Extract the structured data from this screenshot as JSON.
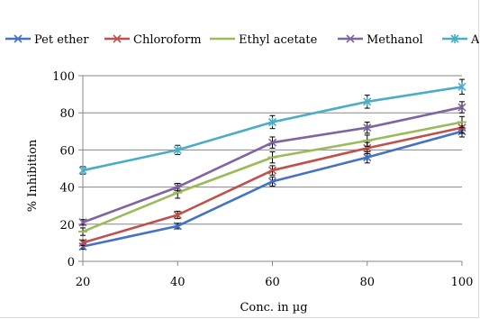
{
  "chart_data": {
    "type": "line",
    "x": [
      20,
      40,
      60,
      80,
      100
    ],
    "xlabel": "Conc. in µg",
    "ylabel": "% Inhibition",
    "xlim": [
      20,
      100
    ],
    "ylim": [
      0,
      100
    ],
    "xticks": [
      "20",
      "40",
      "60",
      "80",
      "100"
    ],
    "yticks": [
      "0",
      "20",
      "40",
      "60",
      "80",
      "100"
    ],
    "grid": "horizontal",
    "legend_position": "top",
    "series": [
      {
        "name": "Pet ether",
        "color": "#4472C4",
        "marker": "x",
        "values": [
          8,
          19,
          43,
          56,
          70
        ],
        "errors": [
          1.5,
          1.5,
          2.5,
          3,
          3
        ]
      },
      {
        "name": "Chloroform",
        "color": "#C0504D",
        "marker": "x",
        "values": [
          10,
          25,
          49,
          61,
          72
        ],
        "errors": [
          1.5,
          2,
          2.5,
          3,
          3
        ]
      },
      {
        "name": "Ethyl acetate",
        "color": "#9BBB59",
        "marker": "dash",
        "values": [
          16,
          37,
          56,
          65,
          75
        ],
        "errors": [
          2,
          3,
          3,
          3,
          3
        ]
      },
      {
        "name": "Methanol",
        "color": "#8064A2",
        "marker": "x",
        "values": [
          21,
          40,
          64,
          72,
          83
        ],
        "errors": [
          1.5,
          2,
          3,
          3,
          3
        ]
      },
      {
        "name": "AA",
        "color": "#4BACC6",
        "marker": "star",
        "values": [
          49,
          60,
          75,
          86,
          94
        ],
        "errors": [
          2,
          2.5,
          3.5,
          3.5,
          4
        ]
      }
    ]
  }
}
